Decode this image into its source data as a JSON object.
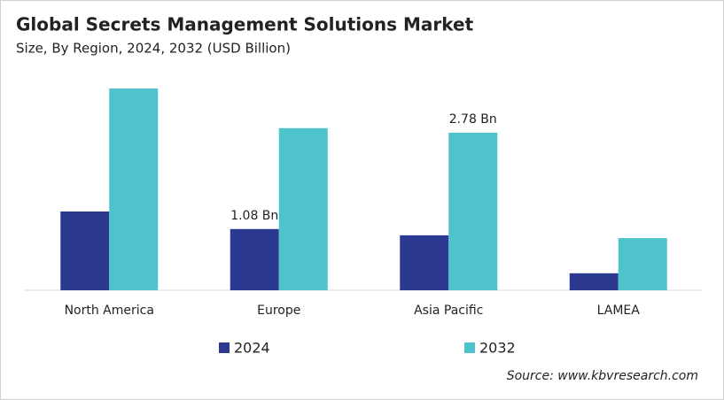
{
  "chart_data": {
    "type": "bar",
    "title": "Global Secrets Management Solutions Market",
    "subtitle": "Size, By Region, 2024, 2032 (USD Billion)",
    "categories": [
      "North America",
      "Europe",
      "Asia Pacific",
      "LAMEA"
    ],
    "series": [
      {
        "name": "2024",
        "color": "#2b3990",
        "values": [
          1.39,
          1.08,
          0.97,
          0.3
        ],
        "value_labels": [
          null,
          "1.08 Bn",
          null,
          null
        ]
      },
      {
        "name": "2032",
        "color": "#4fc3cc",
        "values": [
          3.56,
          2.86,
          2.78,
          0.92
        ],
        "value_labels": [
          null,
          null,
          "2.78 Bn",
          null
        ]
      }
    ],
    "source": "Source: www.kbvresearch.com"
  }
}
